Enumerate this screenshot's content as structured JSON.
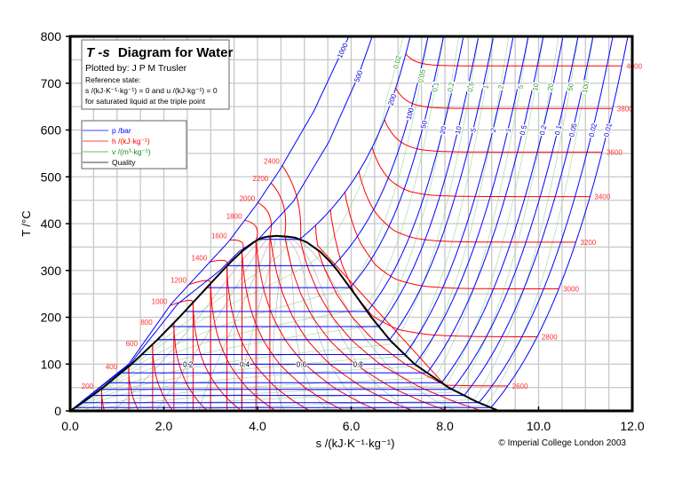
{
  "title": {
    "italic": "T -s",
    "main": "Diagram for Water",
    "plotted_by": "Plotted by: J P M Trusler",
    "ref_label": "Reference state:",
    "ref_line1": "s /(kJ·K⁻¹·kg⁻¹) = 0 and u /(kJ·kg⁻¹) = 0",
    "ref_line2": "for saturated liquid at the triple point"
  },
  "legend": [
    {
      "label": "p /bar",
      "color": "#0000ff"
    },
    {
      "label": "h /(kJ·kg⁻¹)",
      "color": "#ff0000"
    },
    {
      "label": "v /(m³·kg⁻¹)",
      "color": "#33aa33"
    },
    {
      "label": "Quality",
      "color": "#000000"
    }
  ],
  "copyright": "© Imperial College London 2003",
  "chart_data": {
    "type": "line",
    "xlabel": "s /(kJ·K⁻¹·kg⁻¹)",
    "ylabel": "T /°C",
    "xlim": [
      0,
      12
    ],
    "ylim": [
      0,
      800
    ],
    "xticks": [
      "0.0",
      "2.0",
      "4.0",
      "6.0",
      "8.0",
      "10.0",
      "12.0"
    ],
    "yticks": [
      "0",
      "100",
      "200",
      "300",
      "400",
      "500",
      "600",
      "700",
      "800"
    ],
    "grid": true,
    "isobars_bar": [
      "1000",
      "500",
      "200",
      "100",
      "50",
      "20",
      "10",
      "5",
      "2",
      "1",
      "0.5",
      "0.2",
      "0.1",
      "0.05",
      "0.02",
      "0.01"
    ],
    "isenthalps_kJkg": [
      "200",
      "400",
      "600",
      "800",
      "1000",
      "1200",
      "1400",
      "1600",
      "1800",
      "2000",
      "2200",
      "2400",
      "2600",
      "2800",
      "3000",
      "3200",
      "3400",
      "3600",
      "3800",
      "4000"
    ],
    "isochores_m3kg": [
      "0.01",
      "0.02",
      "0.05",
      "0.1",
      "0.2",
      "0.5",
      "1",
      "2",
      "5",
      "10",
      "20",
      "50",
      "100"
    ],
    "quality_labels": [
      "0.2",
      "0.4",
      "0.6",
      "0.8"
    ],
    "quality_lines": [
      0.1,
      0.2,
      0.3,
      0.4,
      0.5,
      0.6,
      0.7,
      0.8,
      0.9
    ],
    "saturation": {
      "T": [
        0.01,
        20,
        50,
        100,
        150,
        200,
        250,
        300,
        320,
        340,
        360,
        365,
        370,
        372,
        373.95
      ],
      "sf": [
        0,
        0.2965,
        0.7038,
        1.3072,
        1.8418,
        2.3305,
        2.7935,
        3.2548,
        3.4495,
        3.6601,
        3.9167,
        4.0,
        4.1112,
        4.2,
        4.407
      ],
      "sg": [
        9.1556,
        8.666,
        8.0748,
        7.3541,
        6.8379,
        6.4302,
        6.0721,
        5.7059,
        5.5373,
        5.3356,
        5.0536,
        4.94,
        4.8012,
        4.65,
        4.407
      ],
      "hf": [
        0,
        83.9,
        209.3,
        419.1,
        632.2,
        852.3,
        1085.8,
        1344.8,
        1461.2,
        1594.5,
        1764.2,
        1826,
        1890.7,
        1962,
        2084.3
      ],
      "hg": [
        2500.9,
        2537.4,
        2591.3,
        2675.6,
        2745.9,
        2792.0,
        2800.9,
        2748.7,
        2699.6,
        2621.8,
        2481.6,
        2412,
        2332.5,
        2245,
        2084.3
      ]
    }
  }
}
